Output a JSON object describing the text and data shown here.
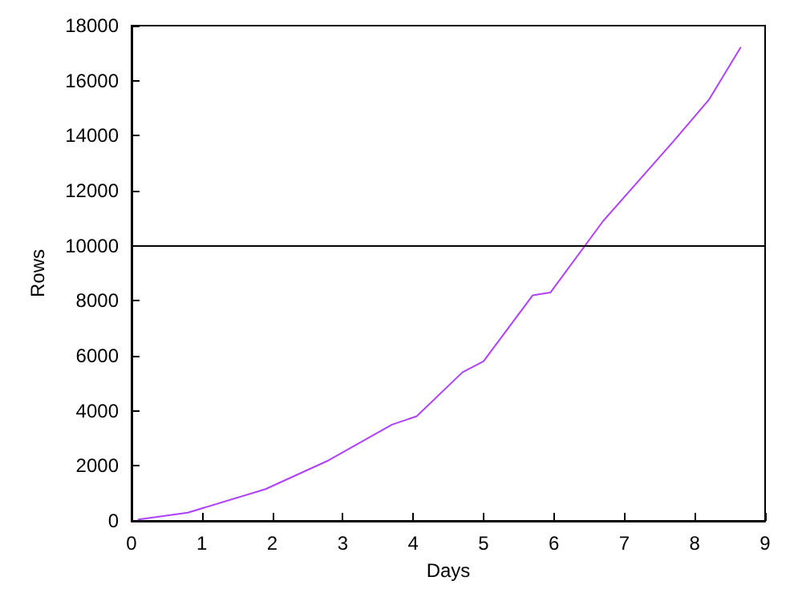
{
  "chart_data": {
    "type": "line",
    "xlabel": "Days",
    "ylabel": "Rows",
    "x": [
      0.1,
      0.8,
      1.9,
      2.8,
      3.7,
      4.05,
      4.7,
      5.0,
      5.7,
      5.95,
      6.7,
      7.7,
      8.2,
      8.65
    ],
    "series": [
      {
        "color": "#b040ff",
        "values": [
          50,
          300,
          1150,
          2200,
          3500,
          3800,
          5400,
          5800,
          8200,
          8300,
          10900,
          13800,
          15300,
          17200
        ]
      }
    ],
    "xlim": [
      0,
      9
    ],
    "xticks": [
      0,
      1,
      2,
      3,
      4,
      5,
      6,
      7,
      8,
      9
    ],
    "ylim": [
      0,
      18000
    ],
    "yticks": [
      0,
      2000,
      4000,
      6000,
      8000,
      10000,
      12000,
      14000,
      16000,
      18000
    ],
    "ref_lines": [
      {
        "axis": "y",
        "value": 10000,
        "color": "#000000"
      }
    ],
    "grid": false,
    "marker": "none",
    "line_style": "solid"
  }
}
